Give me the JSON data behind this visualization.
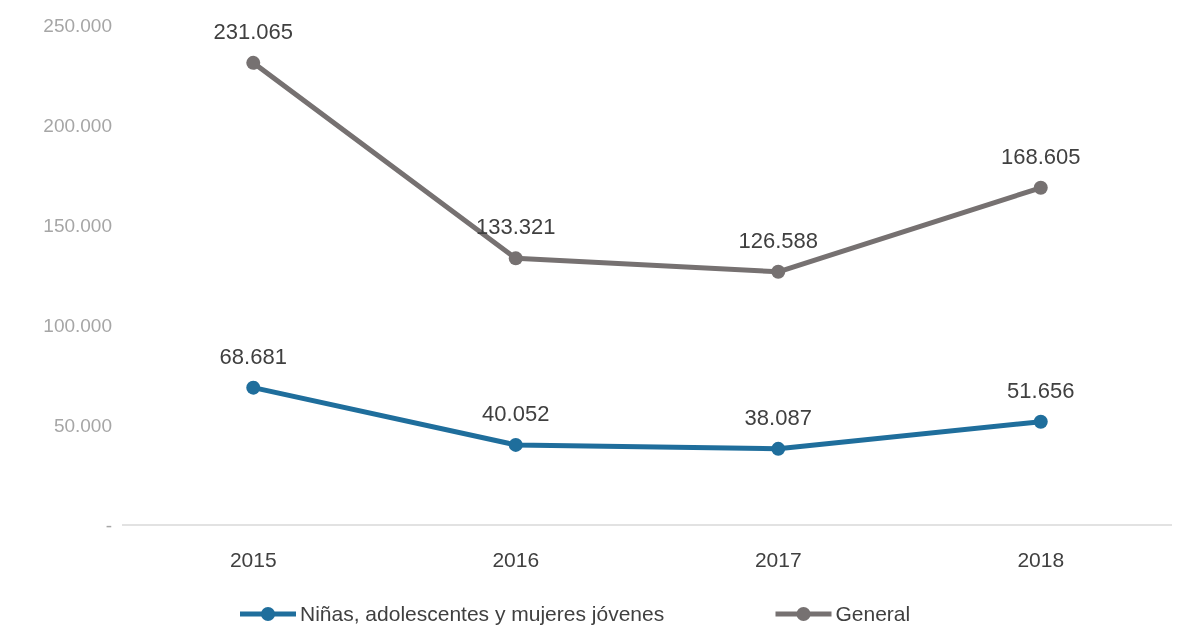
{
  "chart_data": {
    "type": "line",
    "categories": [
      "2015",
      "2016",
      "2017",
      "2018"
    ],
    "series": [
      {
        "name": "Niñas, adolescentes y mujeres jóvenes",
        "color": "#1f6e9c",
        "values": [
          68681,
          40052,
          38087,
          51656
        ],
        "value_labels": [
          "68.681",
          "40.052",
          "38.087",
          "51.656"
        ]
      },
      {
        "name": "General",
        "color": "#767171",
        "values": [
          231065,
          133321,
          126588,
          168605
        ],
        "value_labels": [
          "231.065",
          "133.321",
          "126.588",
          "168.605"
        ]
      }
    ],
    "ylim": [
      0,
      250000
    ],
    "yticks": [
      {
        "value": 0,
        "label": "-"
      },
      {
        "value": 50000,
        "label": "50.000"
      },
      {
        "value": 100000,
        "label": "100.000"
      },
      {
        "value": 150000,
        "label": "150.000"
      },
      {
        "value": 200000,
        "label": "200.000"
      },
      {
        "value": 250000,
        "label": "250.000"
      }
    ],
    "grid": false,
    "legend": "bottom",
    "marker": "circle",
    "line_style": "solid"
  }
}
